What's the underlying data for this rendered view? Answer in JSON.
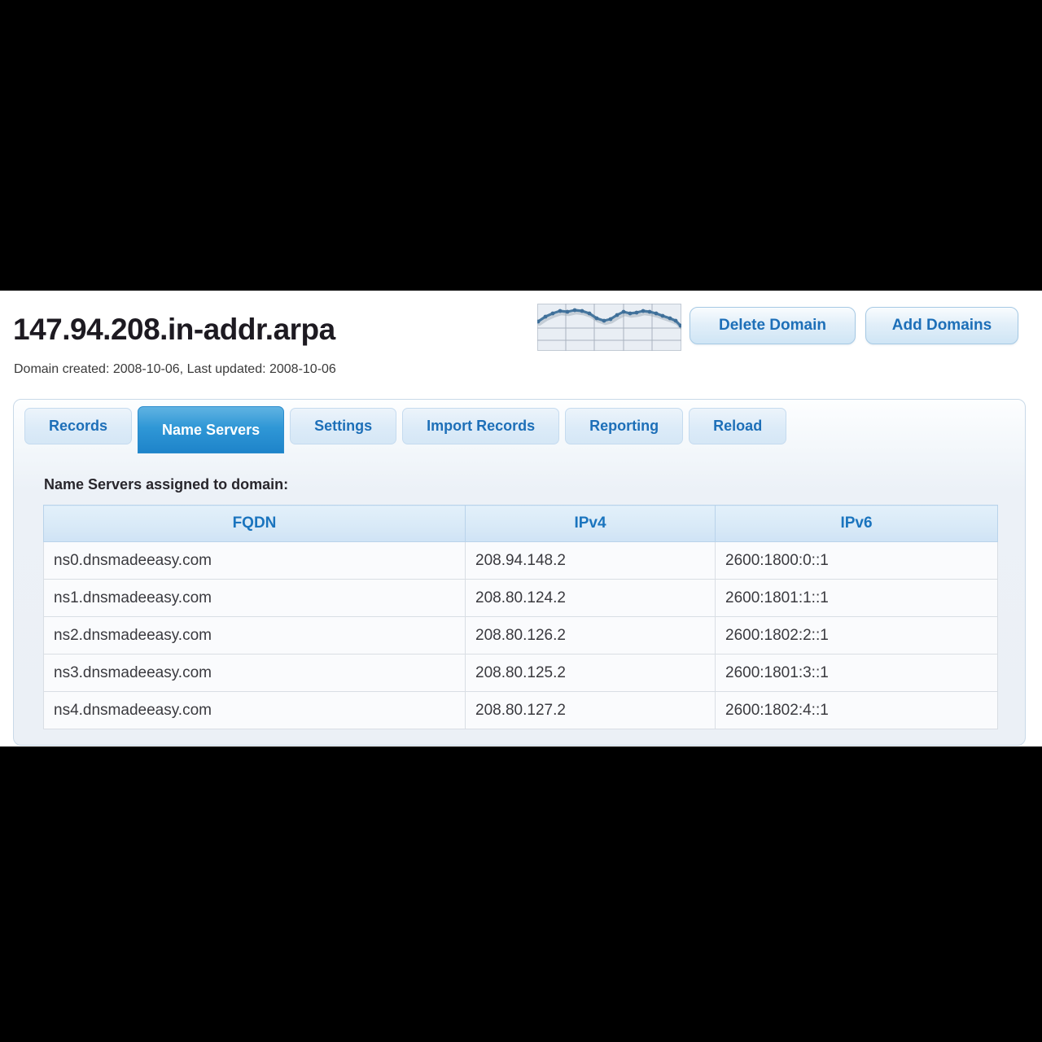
{
  "header": {
    "title": "147.94.208.in-addr.arpa",
    "meta": "Domain created: 2008-10-06, Last updated: 2008-10-06",
    "buttons": {
      "delete_label": "Delete Domain",
      "add_label": "Add Domains"
    },
    "sparkline": {
      "description": "query-traffic-thumbnail",
      "points": [
        [
          1,
          22
        ],
        [
          10,
          16
        ],
        [
          19,
          12
        ],
        [
          28,
          9
        ],
        [
          37,
          10
        ],
        [
          46,
          8
        ],
        [
          55,
          9
        ],
        [
          64,
          12
        ],
        [
          73,
          18
        ],
        [
          82,
          21
        ],
        [
          90,
          19
        ],
        [
          98,
          14
        ],
        [
          106,
          10
        ],
        [
          114,
          12
        ],
        [
          122,
          11
        ],
        [
          130,
          9
        ],
        [
          138,
          10
        ],
        [
          146,
          12
        ],
        [
          154,
          15
        ],
        [
          163,
          18
        ],
        [
          170,
          21
        ],
        [
          176,
          27
        ]
      ]
    }
  },
  "tabs": {
    "active": "Name Servers",
    "items": [
      {
        "label": "Records"
      },
      {
        "label": "Name Servers"
      },
      {
        "label": "Settings"
      },
      {
        "label": "Import Records"
      },
      {
        "label": "Reporting"
      },
      {
        "label": "Reload"
      }
    ]
  },
  "content": {
    "section_label": "Name Servers assigned to domain:",
    "table": {
      "headers": [
        "FQDN",
        "IPv4",
        "IPv6"
      ],
      "rows": [
        {
          "fqdn": "ns0.dnsmadeeasy.com",
          "ipv4": "208.94.148.2",
          "ipv6": "2600:1800:0::1"
        },
        {
          "fqdn": "ns1.dnsmadeeasy.com",
          "ipv4": "208.80.124.2",
          "ipv6": "2600:1801:1::1"
        },
        {
          "fqdn": "ns2.dnsmadeeasy.com",
          "ipv4": "208.80.126.2",
          "ipv6": "2600:1802:2::1"
        },
        {
          "fqdn": "ns3.dnsmadeeasy.com",
          "ipv4": "208.80.125.2",
          "ipv6": "2600:1801:3::1"
        },
        {
          "fqdn": "ns4.dnsmadeeasy.com",
          "ipv4": "208.80.127.2",
          "ipv6": "2600:1802:4::1"
        }
      ]
    }
  },
  "colors": {
    "accent_blue": "#1d6fb8",
    "active_tab_blue": "#1e84ca",
    "header_text_blue": "#1a74be",
    "sparkline_line": "#46779f",
    "panel_border": "#c9d9e8",
    "page_letterbox": "#000000"
  }
}
